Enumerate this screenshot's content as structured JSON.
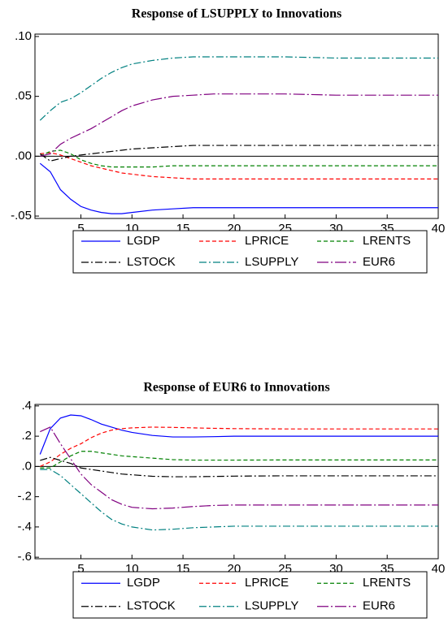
{
  "chart_data": [
    {
      "type": "line",
      "title": "Response of LSUPPLY to Innovations",
      "x": [
        1,
        2,
        3,
        4,
        5,
        6,
        7,
        8,
        9,
        10,
        12,
        14,
        16,
        18,
        20,
        25,
        30,
        35,
        40
      ],
      "xlim": [
        0.5,
        40
      ],
      "xticks": [
        5,
        10,
        15,
        20,
        25,
        30,
        35,
        40
      ],
      "ylim": [
        -0.052,
        0.102
      ],
      "yticks": [
        {
          "value": -0.05,
          "label": "-.05"
        },
        {
          "value": 0,
          "label": ".00"
        },
        {
          "value": 0.05,
          "label": ".05"
        },
        {
          "value": 0.1,
          "label": ".10"
        }
      ],
      "series": [
        {
          "name": "LGDP",
          "color": "#0000ff",
          "style": "solid",
          "values": [
            -0.006,
            -0.013,
            -0.028,
            -0.036,
            -0.042,
            -0.045,
            -0.047,
            -0.048,
            -0.048,
            -0.047,
            -0.045,
            -0.044,
            -0.043,
            -0.043,
            -0.043,
            -0.043,
            -0.043,
            -0.043,
            -0.043
          ]
        },
        {
          "name": "LPRICE",
          "color": "#ff0000",
          "style": "dashed",
          "values": [
            0.002,
            0.003,
            0.001,
            -0.002,
            -0.005,
            -0.008,
            -0.01,
            -0.012,
            -0.014,
            -0.015,
            -0.017,
            -0.018,
            -0.019,
            -0.019,
            -0.019,
            -0.019,
            -0.019,
            -0.019,
            -0.019
          ]
        },
        {
          "name": "LRENTS",
          "color": "#008000",
          "style": "dashed",
          "values": [
            0.0,
            0.004,
            0.005,
            0.002,
            -0.003,
            -0.006,
            -0.008,
            -0.009,
            -0.009,
            -0.009,
            -0.009,
            -0.008,
            -0.008,
            -0.008,
            -0.008,
            -0.008,
            -0.008,
            -0.008,
            -0.008
          ]
        },
        {
          "name": "LSTOCK",
          "color": "#000000",
          "style": "dashdot",
          "values": [
            0.002,
            -0.004,
            -0.002,
            0.0,
            0.001,
            0.002,
            0.003,
            0.004,
            0.005,
            0.006,
            0.007,
            0.008,
            0.009,
            0.009,
            0.009,
            0.009,
            0.009,
            0.009,
            0.009
          ]
        },
        {
          "name": "LSUPPLY",
          "color": "#008080",
          "style": "dashdot",
          "values": [
            0.03,
            0.038,
            0.045,
            0.048,
            0.053,
            0.059,
            0.065,
            0.07,
            0.074,
            0.077,
            0.08,
            0.082,
            0.083,
            0.083,
            0.083,
            0.083,
            0.082,
            0.082,
            0.082
          ]
        },
        {
          "name": "EUR6",
          "color": "#800080",
          "style": "longdashdot",
          "values": [
            0.0,
            0.002,
            0.01,
            0.015,
            0.019,
            0.023,
            0.028,
            0.033,
            0.038,
            0.042,
            0.047,
            0.05,
            0.051,
            0.052,
            0.052,
            0.052,
            0.051,
            0.051,
            0.051
          ]
        }
      ]
    },
    {
      "type": "line",
      "title": "Response of EUR6 to Innovations",
      "x": [
        1,
        2,
        3,
        4,
        5,
        6,
        7,
        8,
        9,
        10,
        12,
        14,
        16,
        18,
        20,
        25,
        30,
        35,
        40
      ],
      "xlim": [
        0.5,
        40
      ],
      "xticks": [
        5,
        10,
        15,
        20,
        25,
        30,
        35,
        40
      ],
      "ylim": [
        -0.61,
        0.41
      ],
      "yticks": [
        {
          "value": -0.6,
          "label": "-.6"
        },
        {
          "value": -0.4,
          "label": "-.4"
        },
        {
          "value": -0.2,
          "label": "-.2"
        },
        {
          "value": 0,
          "label": ".0"
        },
        {
          "value": 0.2,
          "label": ".2"
        },
        {
          "value": 0.4,
          "label": ".4"
        }
      ],
      "series": [
        {
          "name": "LGDP",
          "color": "#0000ff",
          "style": "solid",
          "values": [
            0.08,
            0.25,
            0.32,
            0.34,
            0.335,
            0.31,
            0.28,
            0.26,
            0.24,
            0.225,
            0.205,
            0.195,
            0.195,
            0.197,
            0.2,
            0.2,
            0.2,
            0.2,
            0.2
          ]
        },
        {
          "name": "LPRICE",
          "color": "#ff0000",
          "style": "dashed",
          "values": [
            0.0,
            0.03,
            0.08,
            0.12,
            0.15,
            0.19,
            0.22,
            0.24,
            0.25,
            0.255,
            0.26,
            0.258,
            0.255,
            0.252,
            0.25,
            0.248,
            0.248,
            0.248,
            0.248
          ]
        },
        {
          "name": "LRENTS",
          "color": "#008000",
          "style": "dashed",
          "values": [
            -0.01,
            -0.01,
            0.03,
            0.07,
            0.1,
            0.1,
            0.09,
            0.08,
            0.07,
            0.065,
            0.055,
            0.045,
            0.042,
            0.042,
            0.042,
            0.043,
            0.043,
            0.043,
            0.043
          ]
        },
        {
          "name": "LSTOCK",
          "color": "#000000",
          "style": "dashdot",
          "values": [
            0.04,
            0.06,
            0.04,
            0.02,
            -0.01,
            -0.02,
            -0.03,
            -0.04,
            -0.05,
            -0.055,
            -0.065,
            -0.068,
            -0.068,
            -0.066,
            -0.064,
            -0.062,
            -0.062,
            -0.062,
            -0.062
          ]
        },
        {
          "name": "LSUPPLY",
          "color": "#008080",
          "style": "dashdot",
          "values": [
            -0.02,
            -0.02,
            -0.06,
            -0.12,
            -0.18,
            -0.24,
            -0.3,
            -0.35,
            -0.38,
            -0.4,
            -0.42,
            -0.415,
            -0.405,
            -0.4,
            -0.395,
            -0.395,
            -0.395,
            -0.395,
            -0.395
          ]
        },
        {
          "name": "EUR6",
          "color": "#800080",
          "style": "longdashdot",
          "values": [
            0.23,
            0.26,
            0.15,
            0.05,
            -0.05,
            -0.12,
            -0.17,
            -0.22,
            -0.25,
            -0.27,
            -0.28,
            -0.275,
            -0.265,
            -0.258,
            -0.255,
            -0.255,
            -0.255,
            -0.255,
            -0.255
          ]
        }
      ]
    }
  ]
}
